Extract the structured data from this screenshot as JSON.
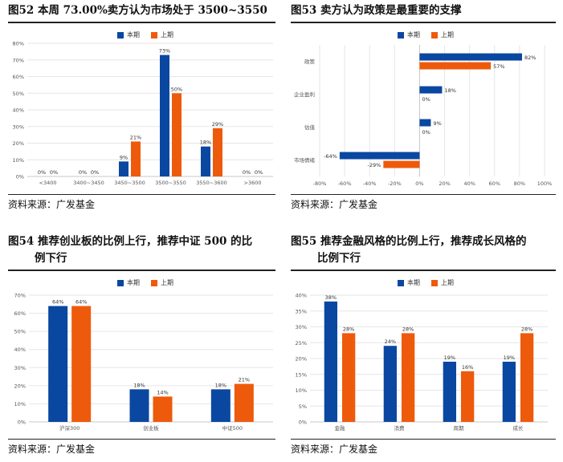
{
  "colors": {
    "current": "#0a47a1",
    "previous": "#ee5a0b",
    "axis": "#c8c8c8",
    "grid": "#e6e6e6",
    "text": "#555555"
  },
  "legend": {
    "current": "本期",
    "previous": "上期"
  },
  "charts": {
    "fig52": {
      "title": "图52  本周 73.00%卖方认为市场处于 3500~3550",
      "source": "资料来源：广发基金",
      "chart_data": {
        "type": "bar",
        "categories": [
          "<3400",
          "3400~3450",
          "3450~3500",
          "3500~3550",
          "3550~3600",
          ">3600"
        ],
        "series": [
          {
            "name": "本期",
            "values": [
              0,
              0,
              9,
              73,
              18,
              0
            ]
          },
          {
            "name": "上期",
            "values": [
              0,
              0,
              21,
              50,
              29,
              0
            ]
          }
        ],
        "ylim": [
          0,
          80
        ],
        "yticks": [
          0,
          10,
          20,
          30,
          40,
          50,
          60,
          70,
          80
        ],
        "unit": "%",
        "legend_position": "top"
      }
    },
    "fig53": {
      "title": "图53  卖方认为政策是最重要的支撑",
      "source": "资料来源：广发基金",
      "chart_data": {
        "type": "bar",
        "orientation": "horizontal",
        "categories": [
          "政策",
          "企业盈利",
          "估值",
          "市场情绪"
        ],
        "series": [
          {
            "name": "本期",
            "values": [
              82,
              18,
              9,
              -64
            ]
          },
          {
            "name": "上期",
            "values": [
              57,
              0,
              0,
              -29
            ]
          }
        ],
        "xlim": [
          -80,
          100
        ],
        "xticks": [
          -80,
          -60,
          -40,
          -20,
          0,
          20,
          40,
          60,
          80,
          100
        ],
        "unit": "%",
        "legend_position": "top"
      }
    },
    "fig54": {
      "title": "图54  推荐创业板的比例上行，推荐中证 500 的比",
      "title_line2": "例下行",
      "source": "资料来源：广发基金",
      "chart_data": {
        "type": "bar",
        "categories": [
          "沪深300",
          "创业板",
          "中证500"
        ],
        "series": [
          {
            "name": "本期",
            "values": [
              64,
              18,
              18
            ]
          },
          {
            "name": "上期",
            "values": [
              64,
              14,
              21
            ]
          }
        ],
        "ylim": [
          0,
          70
        ],
        "yticks": [
          0,
          10,
          20,
          30,
          40,
          50,
          60,
          70
        ],
        "unit": "%",
        "legend_position": "top"
      }
    },
    "fig55": {
      "title": "图55  推荐金融风格的比例上行，推荐成长风格的",
      "title_line2": "比例下行",
      "source": "资料来源：广发基金",
      "chart_data": {
        "type": "bar",
        "categories": [
          "金融",
          "消费",
          "周期",
          "成长"
        ],
        "series": [
          {
            "name": "本期",
            "values": [
              38,
              24,
              19,
              19
            ]
          },
          {
            "name": "上期",
            "values": [
              28,
              28,
              16,
              28
            ]
          }
        ],
        "ylim": [
          0,
          40
        ],
        "yticks": [
          0,
          5,
          10,
          15,
          20,
          25,
          30,
          35,
          40
        ],
        "unit": "%",
        "legend_position": "top"
      }
    }
  }
}
